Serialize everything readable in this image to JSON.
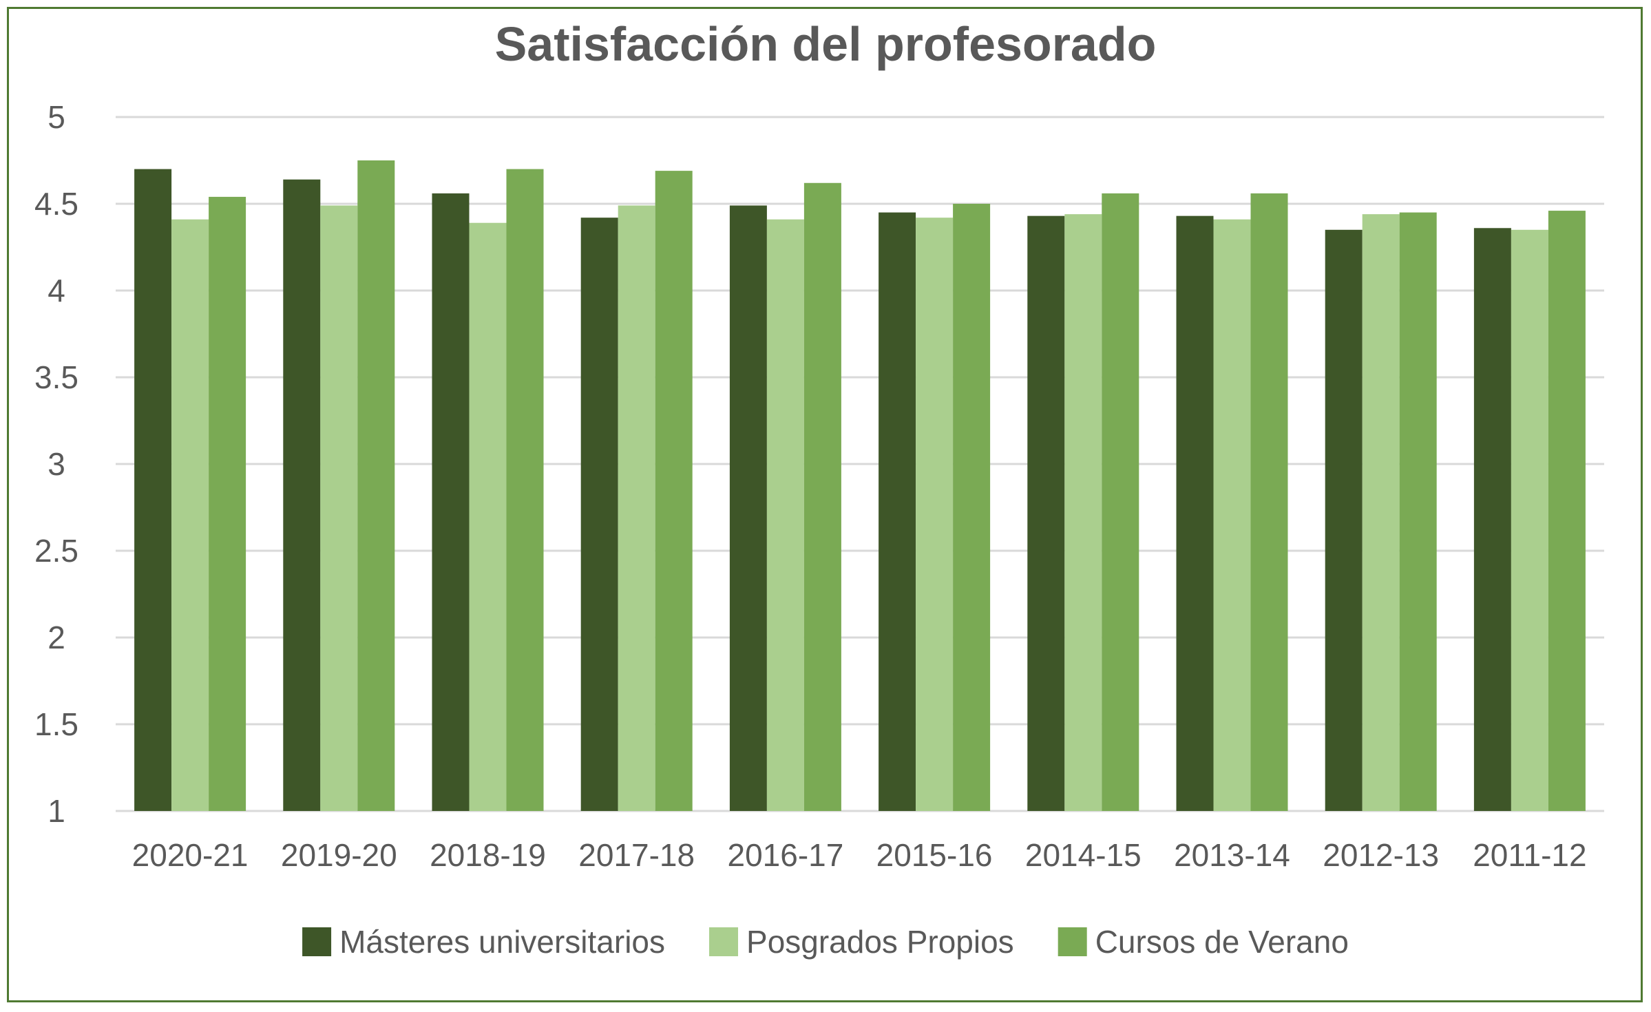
{
  "chart_data": {
    "type": "bar",
    "title": "Satisfacción del profesorado",
    "xlabel": "",
    "ylabel": "",
    "ylim": [
      1,
      5
    ],
    "yticks": [
      "1",
      "1.5",
      "2",
      "2.5",
      "3",
      "3.5",
      "4",
      "4.5",
      "5"
    ],
    "ytick_values": [
      1,
      1.5,
      2,
      2.5,
      3,
      3.5,
      4,
      4.5,
      5
    ],
    "grid": true,
    "legend_position": "bottom",
    "categories": [
      "2020-21",
      "2019-20",
      "2018-19",
      "2017-18",
      "2016-17",
      "2015-16",
      "2014-15",
      "2013-14",
      "2012-13",
      "2011-12"
    ],
    "series": [
      {
        "name": "Másteres universitarios",
        "color": "#3e5628",
        "values": [
          4.7,
          4.64,
          4.56,
          4.42,
          4.49,
          4.45,
          4.43,
          4.43,
          4.35,
          4.36
        ]
      },
      {
        "name": "Posgrados Propios",
        "color": "#aacf8e",
        "values": [
          4.41,
          4.49,
          4.39,
          4.49,
          4.41,
          4.42,
          4.44,
          4.41,
          4.44,
          4.35
        ]
      },
      {
        "name": "Cursos de Verano",
        "color": "#7aaa54",
        "values": [
          4.54,
          4.75,
          4.7,
          4.69,
          4.62,
          4.5,
          4.56,
          4.56,
          4.45,
          4.46
        ]
      }
    ]
  }
}
